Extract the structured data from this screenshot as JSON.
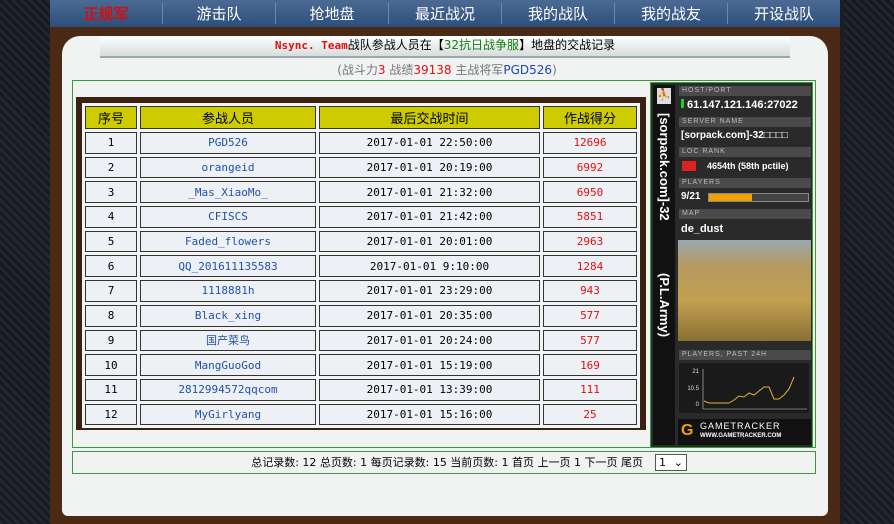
{
  "nav": [
    "正规军",
    "游击队",
    "抢地盘",
    "最近战况",
    "我的战队",
    "我的战友",
    "开设战队"
  ],
  "header": {
    "team": "Nsync. Team",
    "t1": "战队参战人员在【",
    "server": "32抗日战争服",
    "t2": "】地盘的交战记录"
  },
  "summary": {
    "p1": "(战斗力",
    "power": "3",
    "p2": " 战绩",
    "record": "39138",
    "p3": " 主战将军",
    "general": "PGD526",
    "p4": ")"
  },
  "table": {
    "headers": [
      "序号",
      "参战人员",
      "最后交战时间",
      "作战得分"
    ],
    "rows": [
      [
        "1",
        "PGD526",
        "2017-01-01 22:50:00",
        "12696"
      ],
      [
        "2",
        "orangeid",
        "2017-01-01 20:19:00",
        "6992"
      ],
      [
        "3",
        "_Mas_XiaoMo_",
        "2017-01-01 21:32:00",
        "6950"
      ],
      [
        "4",
        "CFISCS",
        "2017-01-01 21:42:00",
        "5851"
      ],
      [
        "5",
        "Faded_flowers",
        "2017-01-01 20:01:00",
        "2963"
      ],
      [
        "6",
        "QQ_201611135583",
        "2017-01-01 9:10:00",
        "1284"
      ],
      [
        "7",
        "1118881h",
        "2017-01-01 23:29:00",
        "943"
      ],
      [
        "8",
        "Black_xing",
        "2017-01-01 20:35:00",
        "577"
      ],
      [
        "9",
        "国产菜鸟",
        "2017-01-01 20:24:00",
        "577"
      ],
      [
        "10",
        "MangGuoGod",
        "2017-01-01 15:19:00",
        "169"
      ],
      [
        "11",
        "2812994572qqcom",
        "2017-01-01 13:39:00",
        "111"
      ],
      [
        "12",
        "MyGirlyang",
        "2017-01-01 15:16:00",
        "25"
      ]
    ]
  },
  "widget": {
    "title_a": "[sorpack.com]-32",
    "title_b": "(P.L.Army)",
    "host_label": "HOST/PORT",
    "host": "61.147.121.146:27022",
    "name_label": "SERVER NAME",
    "name": "[sorpack.com]-32□□□□",
    "rank_label": "LOC  RANK",
    "rank": "4654th (58th pctile)",
    "players_label": "PLAYERS",
    "players": "9/21",
    "players_fraction": 0.43,
    "map_label": "MAP",
    "map": "de_dust",
    "graph_label": "PLAYERS, PAST 24H",
    "graph_ticks": [
      "21",
      "10.5",
      "0"
    ],
    "brand": "GAMETRACKER",
    "url": "WWW.GAMETRACKER.COM"
  },
  "pager": {
    "text": "总记录数: 12 总页数: 1 每页记录数: 15 当前页数: 1 首页 上一页 1 下一页 尾页",
    "page": "1"
  }
}
